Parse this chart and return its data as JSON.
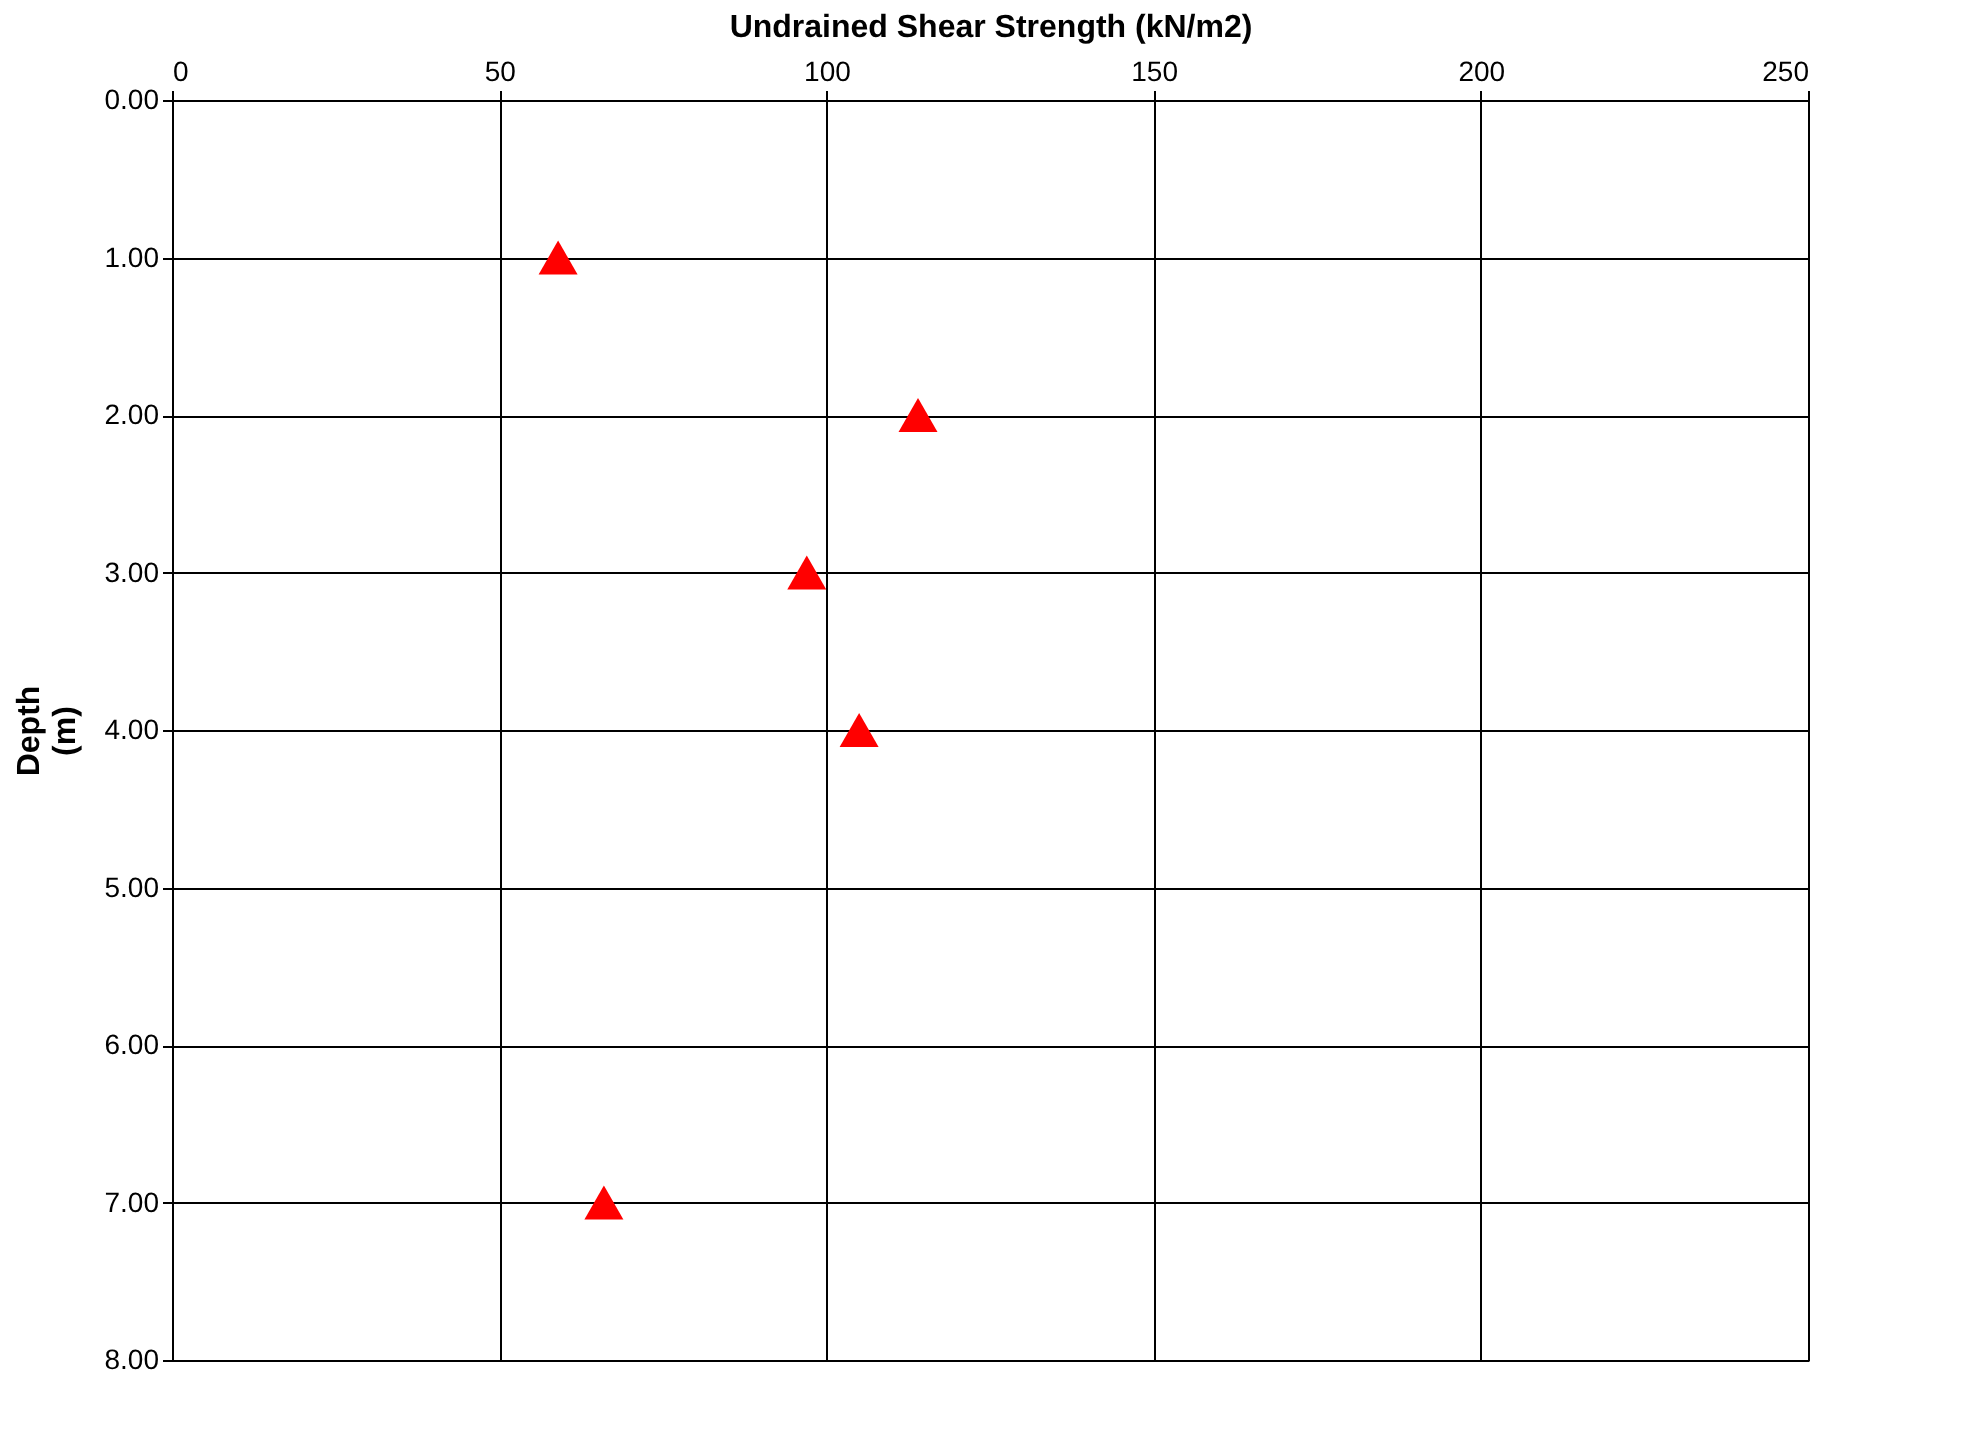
{
  "chart_data": {
    "type": "scatter",
    "xlabel": "Undrained Shear Strength (kN/m2)",
    "ylabel": "Depth (m)",
    "x": [
      59,
      114,
      97,
      105,
      66
    ],
    "series": [
      {
        "color": "#ff0000",
        "values": [
          1,
          2,
          3,
          4,
          7
        ]
      }
    ],
    "xlim": [
      0,
      250
    ],
    "xticks": [
      0,
      50,
      100,
      150,
      200,
      250
    ],
    "ylim": [
      8,
      0
    ],
    "yticks": [
      {
        "value": 0,
        "label": "0.00"
      },
      {
        "value": 1,
        "label": "1.00"
      },
      {
        "value": 2,
        "label": "2.00"
      },
      {
        "value": 3,
        "label": "3.00"
      },
      {
        "value": 4,
        "label": "4.00"
      },
      {
        "value": 5,
        "label": "5.00"
      },
      {
        "value": 6,
        "label": "6.00"
      },
      {
        "value": 7,
        "label": "7.00"
      },
      {
        "value": 8,
        "label": "8.00"
      }
    ],
    "grid": true,
    "legend": false,
    "marker": "triangle"
  }
}
